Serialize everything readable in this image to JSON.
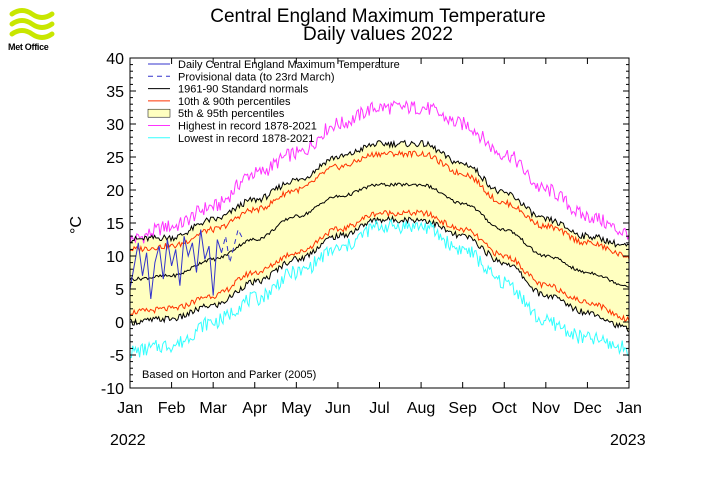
{
  "logo": {
    "text": "Met Office",
    "icon": "met-office-wave-icon",
    "color": "#c8e600"
  },
  "title_line1": "Central England Maximum Temperature",
  "title_line2": "Daily values 2022",
  "year_start": "2022",
  "year_end": "2023",
  "note": "Based on Horton and Parker (2005)",
  "chart_data": {
    "type": "line",
    "title": "Central England Maximum Temperature Daily values 2022",
    "ylabel": "°C",
    "ylim": [
      -10,
      40
    ],
    "yticks": [
      40,
      35,
      30,
      25,
      20,
      15,
      10,
      5,
      0,
      -5,
      -10
    ],
    "x_tick_labels": [
      "Jan",
      "Feb",
      "Mar",
      "Apr",
      "May",
      "Jun",
      "Jul",
      "Aug",
      "Sep",
      "Oct",
      "Nov",
      "Dec",
      "Jan"
    ],
    "grid": false,
    "legend_position": "top-left",
    "legend": [
      {
        "label": "Daily Central England Maximum Temperature",
        "color": "#3333cc",
        "style": "solid"
      },
      {
        "label": "Provisional data (to 23rd March)",
        "color": "#3333cc",
        "style": "dashed"
      },
      {
        "label": "1961-90 Standard normals",
        "color": "#000000",
        "style": "solid"
      },
      {
        "label": "10th & 90th percentiles",
        "color": "#ff3300",
        "style": "solid"
      },
      {
        "label": "5th & 95th percentiles",
        "color": "#ffffc0",
        "style": "band"
      },
      {
        "label": "Highest in record 1878-2021",
        "color": "#ff33ff",
        "style": "solid"
      },
      {
        "label": "Lowest in record 1878-2021",
        "color": "#33ffff",
        "style": "solid"
      }
    ],
    "month_x": [
      0,
      1,
      2,
      3,
      4,
      5,
      6,
      7,
      8,
      9,
      10,
      11,
      12
    ],
    "series": [
      {
        "name": "Highest in record 1878-2021",
        "color": "#ff33ff",
        "values": [
          12.5,
          14.5,
          17.5,
          22.5,
          25.5,
          30.0,
          32.5,
          32.5,
          30.0,
          25.5,
          20.0,
          16.0,
          13.5
        ]
      },
      {
        "name": "5th & 95th percentiles",
        "role": "upper",
        "color": "#000000",
        "values": [
          12.5,
          12.8,
          15.5,
          18.5,
          21.5,
          25.0,
          27.0,
          27.0,
          24.0,
          19.5,
          15.5,
          13.0,
          11.5
        ]
      },
      {
        "name": "10th & 90th percentiles",
        "role": "upper",
        "color": "#ff3300",
        "values": [
          11.0,
          11.5,
          14.0,
          17.0,
          20.0,
          23.5,
          25.5,
          25.5,
          22.5,
          18.0,
          14.5,
          12.0,
          10.0
        ]
      },
      {
        "name": "1961-90 Standard normals",
        "color": "#000000",
        "values": [
          6.5,
          7.0,
          9.5,
          12.5,
          16.0,
          19.0,
          20.8,
          20.8,
          18.0,
          14.0,
          10.0,
          7.5,
          5.5
        ]
      },
      {
        "name": "10th & 90th percentiles",
        "role": "lower",
        "color": "#ff3300",
        "values": [
          1.5,
          2.0,
          4.0,
          7.5,
          10.5,
          14.0,
          16.5,
          16.5,
          14.0,
          10.0,
          5.5,
          3.0,
          0.5
        ]
      },
      {
        "name": "5th & 95th percentiles",
        "role": "lower",
        "color": "#000000",
        "values": [
          0.0,
          0.5,
          2.5,
          6.0,
          9.5,
          13.0,
          15.5,
          15.5,
          13.0,
          9.0,
          4.0,
          1.5,
          -1.0
        ]
      },
      {
        "name": "Lowest in record 1878-2021",
        "color": "#33ffff",
        "values": [
          -4.5,
          -3.5,
          0.0,
          3.5,
          7.5,
          11.0,
          14.5,
          14.5,
          11.0,
          6.0,
          0.0,
          -2.5,
          -4.0
        ]
      }
    ],
    "observed": {
      "name": "Daily Central England Maximum Temperature",
      "x_months": [
        0.0,
        0.1,
        0.2,
        0.3,
        0.4,
        0.5,
        0.6,
        0.7,
        0.8,
        0.9,
        1.0,
        1.1,
        1.2,
        1.3,
        1.4,
        1.5,
        1.6,
        1.7,
        1.8,
        1.9,
        2.0,
        2.1,
        2.2
      ],
      "values": [
        5.0,
        8.5,
        12.0,
        7.0,
        10.5,
        3.5,
        9.0,
        11.5,
        6.5,
        12.5,
        8.5,
        11.0,
        5.5,
        13.0,
        10.0,
        12.0,
        7.5,
        14.0,
        9.5,
        11.5,
        4.0,
        12.5,
        10.5
      ]
    },
    "provisional": {
      "name": "Provisional data (to 23rd March)",
      "x_months": [
        2.2,
        2.3,
        2.4,
        2.5,
        2.6,
        2.72
      ],
      "values": [
        10.5,
        13.0,
        9.0,
        11.5,
        14.0,
        12.5
      ]
    }
  }
}
